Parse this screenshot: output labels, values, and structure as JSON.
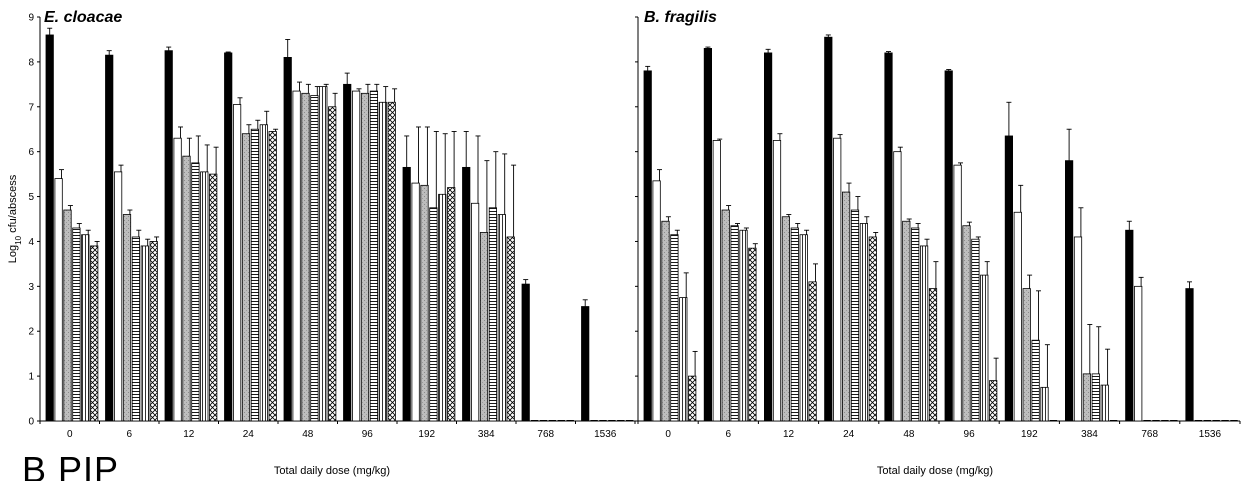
{
  "figure_label": "B   PIP",
  "y_axis_label": "Log10 cfu/abscess",
  "colors": {
    "bar_fill": "#ffffff",
    "bar_black": "#000000",
    "bar_gray": "#bdbdbd",
    "stroke": "#000000"
  },
  "chart_data": [
    {
      "type": "bar",
      "title": "E. cloacae",
      "xlabel": "Total daily dose (mg/kg)",
      "ylabel": "Log10 cfu/abscess",
      "ylim": [
        0,
        9
      ],
      "yticks": [
        0,
        1,
        2,
        3,
        4,
        5,
        6,
        7,
        8,
        9
      ],
      "grid": false,
      "categories": [
        "0",
        "6",
        "12",
        "24",
        "48",
        "96",
        "192",
        "384",
        "768",
        "1536"
      ],
      "groups": [
        {
          "values": [
            8.6,
            5.4,
            4.7,
            4.3,
            4.15,
            3.9
          ],
          "errors": [
            0.15,
            0.2,
            0.1,
            0.1,
            0.1,
            0.1
          ]
        },
        {
          "values": [
            8.15,
            5.55,
            4.6,
            4.1,
            3.9,
            4.0
          ],
          "errors": [
            0.1,
            0.15,
            0.1,
            0.15,
            0.15,
            0.1
          ]
        },
        {
          "values": [
            8.25,
            6.3,
            5.9,
            5.75,
            5.55,
            5.5
          ],
          "errors": [
            0.08,
            0.25,
            0.4,
            0.6,
            0.6,
            0.6
          ]
        },
        {
          "values": [
            8.2,
            7.05,
            6.4,
            6.5,
            6.6,
            6.45
          ],
          "errors": [
            0.02,
            0.15,
            0.2,
            0.2,
            0.3,
            0.05
          ]
        },
        {
          "values": [
            8.1,
            7.35,
            7.3,
            7.25,
            7.45,
            7.0
          ],
          "errors": [
            0.4,
            0.2,
            0.2,
            0.2,
            0.05,
            0.3
          ]
        },
        {
          "values": [
            7.5,
            7.35,
            7.3,
            7.35,
            7.1,
            7.1
          ],
          "errors": [
            0.25,
            0.05,
            0.2,
            0.15,
            0.35,
            0.3
          ]
        },
        {
          "values": [
            5.65,
            5.3,
            5.25,
            4.75,
            5.05,
            5.2
          ],
          "errors": [
            0.7,
            1.25,
            1.3,
            1.7,
            1.35,
            1.25
          ]
        },
        {
          "values": [
            5.65,
            4.85,
            4.2,
            4.75,
            4.6,
            4.1
          ],
          "errors": [
            0.8,
            1.5,
            1.6,
            1.25,
            1.35,
            1.6
          ]
        },
        {
          "values": [
            3.05,
            0,
            0,
            0,
            0,
            0
          ],
          "errors": [
            0.1,
            0,
            0,
            0,
            0,
            0
          ]
        },
        {
          "values": [
            2.55,
            0,
            0,
            0,
            0,
            0
          ],
          "errors": [
            0.15,
            0,
            0,
            0,
            0,
            0
          ]
        }
      ]
    },
    {
      "type": "bar",
      "title": "B. fragilis",
      "xlabel": "Total daily dose (mg/kg)",
      "ylim": [
        0,
        9
      ],
      "grid": false,
      "categories": [
        "0",
        "6",
        "12",
        "24",
        "48",
        "96",
        "192",
        "384",
        "768",
        "1536"
      ],
      "groups": [
        {
          "values": [
            7.8,
            5.35,
            4.45,
            4.15,
            2.75,
            1.0
          ],
          "errors": [
            0.1,
            0.25,
            0.1,
            0.1,
            0.55,
            0.55
          ]
        },
        {
          "values": [
            8.3,
            6.25,
            4.7,
            4.35,
            4.25,
            3.85
          ],
          "errors": [
            0.03,
            0.03,
            0.1,
            0.05,
            0.05,
            0.1
          ]
        },
        {
          "values": [
            8.2,
            6.25,
            4.55,
            4.3,
            4.15,
            3.1
          ],
          "errors": [
            0.08,
            0.15,
            0.05,
            0.1,
            0.1,
            0.4
          ]
        },
        {
          "values": [
            8.55,
            6.3,
            5.1,
            4.7,
            4.4,
            4.1
          ],
          "errors": [
            0.05,
            0.08,
            0.2,
            0.3,
            0.15,
            0.1
          ]
        },
        {
          "values": [
            8.2,
            6.0,
            4.45,
            4.3,
            3.9,
            2.95
          ],
          "errors": [
            0.03,
            0.1,
            0.05,
            0.1,
            0.15,
            0.6
          ]
        },
        {
          "values": [
            7.8,
            5.7,
            4.35,
            4.05,
            3.25,
            0.9
          ],
          "errors": [
            0.03,
            0.05,
            0.08,
            0.05,
            0.3,
            0.5
          ]
        },
        {
          "values": [
            6.35,
            4.65,
            2.95,
            1.8,
            0.75,
            0.0
          ],
          "errors": [
            0.75,
            0.6,
            0.3,
            1.1,
            0.95,
            0.0
          ]
        },
        {
          "values": [
            5.8,
            4.1,
            1.05,
            1.05,
            0.8,
            0.0
          ],
          "errors": [
            0.7,
            0.65,
            1.1,
            1.05,
            0.8,
            0.0
          ]
        },
        {
          "values": [
            4.25,
            3.0,
            0,
            0,
            0,
            0
          ],
          "errors": [
            0.2,
            0.2,
            0,
            0,
            0,
            0
          ]
        },
        {
          "values": [
            2.95,
            0,
            0,
            0,
            0,
            0
          ],
          "errors": [
            0.15,
            0,
            0,
            0,
            0,
            0
          ]
        }
      ]
    }
  ]
}
